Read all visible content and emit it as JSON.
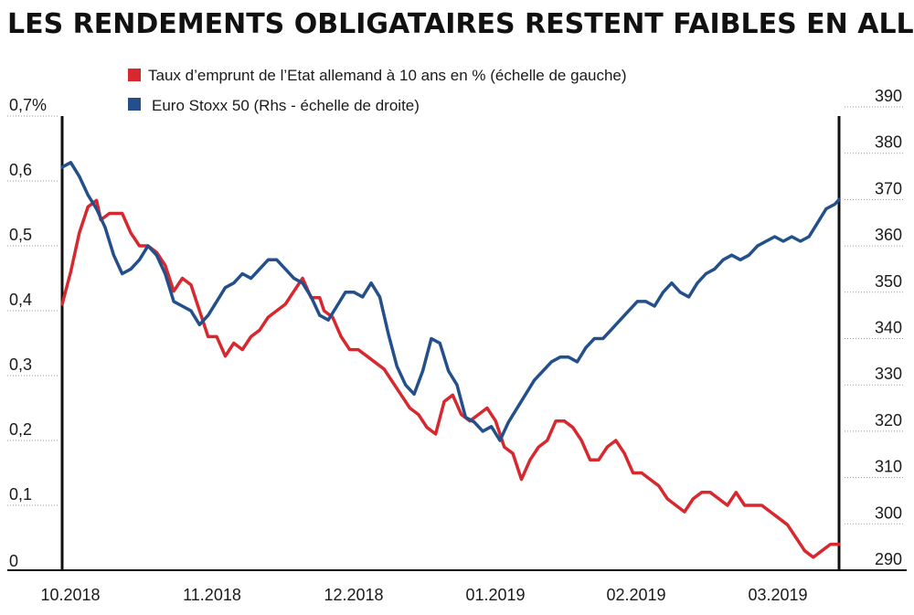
{
  "chart_data": {
    "type": "line",
    "title": "LES RENDEMENTS OBLIGATAIRES RESTENT FAIBLES EN ALLEMAGNE...",
    "x_ticks": [
      "10.2018",
      "11.2018",
      "12.2018",
      "01.2019",
      "02.2019",
      "03.2019"
    ],
    "left_axis": {
      "ylim": [
        0,
        0.7
      ],
      "ticks": [
        {
          "value": 0,
          "label": "0"
        },
        {
          "value": 0.1,
          "label": "0,1"
        },
        {
          "value": 0.2,
          "label": "0,2"
        },
        {
          "value": 0.3,
          "label": "0,3"
        },
        {
          "value": 0.4,
          "label": "0,4"
        },
        {
          "value": 0.5,
          "label": "0,5"
        },
        {
          "value": 0.6,
          "label": "0,6"
        },
        {
          "value": 0.7,
          "label": "0,7%"
        }
      ]
    },
    "right_axis": {
      "ylim": [
        290,
        390
      ],
      "ticks": [
        {
          "value": 290,
          "label": "290"
        },
        {
          "value": 300,
          "label": "300"
        },
        {
          "value": 310,
          "label": "310"
        },
        {
          "value": 320,
          "label": "320"
        },
        {
          "value": 330,
          "label": "330"
        },
        {
          "value": 340,
          "label": "340"
        },
        {
          "value": 350,
          "label": "350"
        },
        {
          "value": 360,
          "label": "360"
        },
        {
          "value": 370,
          "label": "370"
        },
        {
          "value": 380,
          "label": "380"
        },
        {
          "value": 390,
          "label": "390"
        }
      ]
    },
    "grid": true,
    "legend_position": "top",
    "x_range": [
      "2018-10-01",
      "2019-03-31"
    ],
    "series": [
      {
        "name": "Taux d’emprunt de l’Etat allemand à 10 ans en % (échelle de gauche)",
        "axis": "left",
        "color": "#d7282f",
        "points": [
          [
            "2018-10-01",
            0.41
          ],
          [
            "2018-10-03",
            0.46
          ],
          [
            "2018-10-05",
            0.52
          ],
          [
            "2018-10-07",
            0.56
          ],
          [
            "2018-10-09",
            0.57
          ],
          [
            "2018-10-10",
            0.54
          ],
          [
            "2018-10-12",
            0.55
          ],
          [
            "2018-10-15",
            0.55
          ],
          [
            "2018-10-17",
            0.52
          ],
          [
            "2018-10-19",
            0.5
          ],
          [
            "2018-10-21",
            0.5
          ],
          [
            "2018-10-23",
            0.49
          ],
          [
            "2018-10-25",
            0.47
          ],
          [
            "2018-10-27",
            0.43
          ],
          [
            "2018-10-29",
            0.45
          ],
          [
            "2018-10-31",
            0.44
          ],
          [
            "2018-11-02",
            0.4
          ],
          [
            "2018-11-04",
            0.36
          ],
          [
            "2018-11-06",
            0.36
          ],
          [
            "2018-11-08",
            0.33
          ],
          [
            "2018-11-10",
            0.35
          ],
          [
            "2018-11-12",
            0.34
          ],
          [
            "2018-11-14",
            0.36
          ],
          [
            "2018-11-16",
            0.37
          ],
          [
            "2018-11-18",
            0.39
          ],
          [
            "2018-11-20",
            0.4
          ],
          [
            "2018-11-22",
            0.41
          ],
          [
            "2018-11-24",
            0.43
          ],
          [
            "2018-11-26",
            0.45
          ],
          [
            "2018-11-28",
            0.42
          ],
          [
            "2018-11-30",
            0.42
          ],
          [
            "2018-12-01",
            0.4
          ],
          [
            "2018-12-03",
            0.39
          ],
          [
            "2018-12-05",
            0.36
          ],
          [
            "2018-12-07",
            0.34
          ],
          [
            "2018-12-09",
            0.34
          ],
          [
            "2018-12-11",
            0.33
          ],
          [
            "2018-12-13",
            0.32
          ],
          [
            "2018-12-15",
            0.31
          ],
          [
            "2018-12-17",
            0.29
          ],
          [
            "2018-12-19",
            0.27
          ],
          [
            "2018-12-21",
            0.25
          ],
          [
            "2018-12-23",
            0.24
          ],
          [
            "2018-12-25",
            0.22
          ],
          [
            "2018-12-27",
            0.21
          ],
          [
            "2018-12-29",
            0.26
          ],
          [
            "2018-12-31",
            0.27
          ],
          [
            "2019-01-02",
            0.24
          ],
          [
            "2019-01-04",
            0.23
          ],
          [
            "2019-01-06",
            0.24
          ],
          [
            "2019-01-08",
            0.25
          ],
          [
            "2019-01-10",
            0.23
          ],
          [
            "2019-01-12",
            0.19
          ],
          [
            "2019-01-14",
            0.18
          ],
          [
            "2019-01-16",
            0.14
          ],
          [
            "2019-01-18",
            0.17
          ],
          [
            "2019-01-20",
            0.19
          ],
          [
            "2019-01-22",
            0.2
          ],
          [
            "2019-01-24",
            0.23
          ],
          [
            "2019-01-26",
            0.23
          ],
          [
            "2019-01-28",
            0.22
          ],
          [
            "2019-01-30",
            0.2
          ],
          [
            "2019-02-01",
            0.17
          ],
          [
            "2019-02-03",
            0.17
          ],
          [
            "2019-02-05",
            0.19
          ],
          [
            "2019-02-07",
            0.2
          ],
          [
            "2019-02-09",
            0.18
          ],
          [
            "2019-02-11",
            0.15
          ],
          [
            "2019-02-13",
            0.15
          ],
          [
            "2019-02-15",
            0.14
          ],
          [
            "2019-02-17",
            0.13
          ],
          [
            "2019-02-19",
            0.11
          ],
          [
            "2019-02-21",
            0.1
          ],
          [
            "2019-02-23",
            0.09
          ],
          [
            "2019-02-25",
            0.11
          ],
          [
            "2019-02-27",
            0.12
          ],
          [
            "2019-03-01",
            0.12
          ],
          [
            "2019-03-03",
            0.11
          ],
          [
            "2019-03-05",
            0.1
          ],
          [
            "2019-03-07",
            0.12
          ],
          [
            "2019-03-09",
            0.1
          ],
          [
            "2019-03-11",
            0.1
          ],
          [
            "2019-03-13",
            0.1
          ],
          [
            "2019-03-15",
            0.09
          ],
          [
            "2019-03-17",
            0.08
          ],
          [
            "2019-03-19",
            0.07
          ],
          [
            "2019-03-21",
            0.05
          ],
          [
            "2019-03-23",
            0.03
          ],
          [
            "2019-03-25",
            0.02
          ],
          [
            "2019-03-27",
            0.03
          ],
          [
            "2019-03-29",
            0.04
          ],
          [
            "2019-03-31",
            0.04
          ]
        ]
      },
      {
        "name": "Euro Stoxx 50 (Rhs - échelle de droite)",
        "axis": "right",
        "color": "#234f8a",
        "points": [
          [
            "2018-10-01",
            377
          ],
          [
            "2018-10-03",
            378
          ],
          [
            "2018-10-05",
            375
          ],
          [
            "2018-10-07",
            371
          ],
          [
            "2018-10-09",
            368
          ],
          [
            "2018-10-11",
            364
          ],
          [
            "2018-10-13",
            358
          ],
          [
            "2018-10-15",
            354
          ],
          [
            "2018-10-17",
            355
          ],
          [
            "2018-10-19",
            357
          ],
          [
            "2018-10-21",
            360
          ],
          [
            "2018-10-23",
            358
          ],
          [
            "2018-10-25",
            354
          ],
          [
            "2018-10-27",
            348
          ],
          [
            "2018-10-29",
            347
          ],
          [
            "2018-10-31",
            346
          ],
          [
            "2018-11-02",
            343
          ],
          [
            "2018-11-04",
            345
          ],
          [
            "2018-11-06",
            348
          ],
          [
            "2018-11-08",
            351
          ],
          [
            "2018-11-10",
            352
          ],
          [
            "2018-11-12",
            354
          ],
          [
            "2018-11-14",
            353
          ],
          [
            "2018-11-16",
            355
          ],
          [
            "2018-11-18",
            357
          ],
          [
            "2018-11-20",
            357
          ],
          [
            "2018-11-22",
            355
          ],
          [
            "2018-11-24",
            353
          ],
          [
            "2018-11-26",
            352
          ],
          [
            "2018-11-28",
            349
          ],
          [
            "2018-11-30",
            345
          ],
          [
            "2018-12-02",
            344
          ],
          [
            "2018-12-04",
            347
          ],
          [
            "2018-12-06",
            350
          ],
          [
            "2018-12-08",
            350
          ],
          [
            "2018-12-10",
            349
          ],
          [
            "2018-12-12",
            352
          ],
          [
            "2018-12-14",
            349
          ],
          [
            "2018-12-16",
            341
          ],
          [
            "2018-12-18",
            334
          ],
          [
            "2018-12-20",
            330
          ],
          [
            "2018-12-22",
            328
          ],
          [
            "2018-12-24",
            333
          ],
          [
            "2018-12-26",
            340
          ],
          [
            "2018-12-28",
            339
          ],
          [
            "2018-12-30",
            333
          ],
          [
            "2019-01-01",
            330
          ],
          [
            "2019-01-03",
            323
          ],
          [
            "2019-01-05",
            322
          ],
          [
            "2019-01-07",
            320
          ],
          [
            "2019-01-09",
            321
          ],
          [
            "2019-01-11",
            318
          ],
          [
            "2019-01-13",
            322
          ],
          [
            "2019-01-15",
            325
          ],
          [
            "2019-01-17",
            328
          ],
          [
            "2019-01-19",
            331
          ],
          [
            "2019-01-21",
            333
          ],
          [
            "2019-01-23",
            335
          ],
          [
            "2019-01-25",
            336
          ],
          [
            "2019-01-27",
            336
          ],
          [
            "2019-01-29",
            335
          ],
          [
            "2019-01-31",
            338
          ],
          [
            "2019-02-02",
            340
          ],
          [
            "2019-02-04",
            340
          ],
          [
            "2019-02-06",
            342
          ],
          [
            "2019-02-08",
            344
          ],
          [
            "2019-02-10",
            346
          ],
          [
            "2019-02-12",
            348
          ],
          [
            "2019-02-14",
            348
          ],
          [
            "2019-02-16",
            347
          ],
          [
            "2019-02-18",
            350
          ],
          [
            "2019-02-20",
            352
          ],
          [
            "2019-02-22",
            350
          ],
          [
            "2019-02-24",
            349
          ],
          [
            "2019-02-26",
            352
          ],
          [
            "2019-02-28",
            354
          ],
          [
            "2019-03-02",
            355
          ],
          [
            "2019-03-04",
            357
          ],
          [
            "2019-03-06",
            358
          ],
          [
            "2019-03-08",
            357
          ],
          [
            "2019-03-10",
            358
          ],
          [
            "2019-03-12",
            360
          ],
          [
            "2019-03-14",
            361
          ],
          [
            "2019-03-16",
            362
          ],
          [
            "2019-03-18",
            361
          ],
          [
            "2019-03-20",
            362
          ],
          [
            "2019-03-22",
            361
          ],
          [
            "2019-03-24",
            362
          ],
          [
            "2019-03-26",
            365
          ],
          [
            "2019-03-28",
            368
          ],
          [
            "2019-03-30",
            369
          ],
          [
            "2019-03-31",
            370
          ]
        ]
      }
    ]
  }
}
